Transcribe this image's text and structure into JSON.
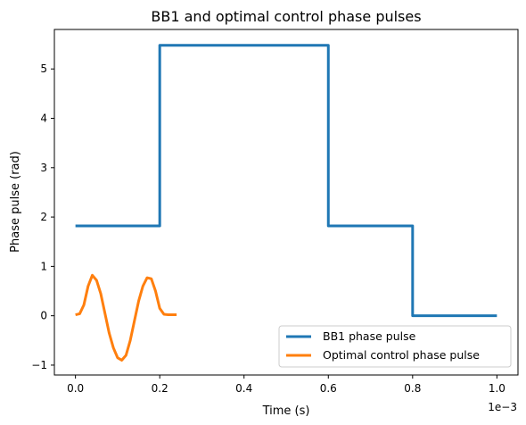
{
  "chart_data": {
    "type": "line",
    "title": "BB1 and optimal control phase pulses",
    "xlabel": "Time (s)",
    "ylabel": "Phase pulse (rad)",
    "x_offset_text": "1e−3",
    "xlim": [
      -0.05,
      1.05
    ],
    "ylim": [
      -1.2,
      5.8
    ],
    "xticks": [
      0.0,
      0.2,
      0.4,
      0.6,
      0.8,
      1.0
    ],
    "xtick_labels": [
      "0.0",
      "0.2",
      "0.4",
      "0.6",
      "0.8",
      "1.0"
    ],
    "yticks": [
      -1,
      0,
      1,
      2,
      3,
      4,
      5
    ],
    "ytick_labels": [
      "−1",
      "0",
      "1",
      "2",
      "3",
      "4",
      "5"
    ],
    "grid": false,
    "legend_position": "lower-right",
    "series": [
      {
        "name": "BB1 phase pulse",
        "color": "#1f77b4",
        "step": true,
        "x": [
          0.0,
          0.2,
          0.2,
          0.6,
          0.6,
          0.8,
          0.8,
          1.0
        ],
        "y": [
          1.82,
          1.82,
          5.48,
          5.48,
          1.82,
          1.82,
          0.0,
          0.0
        ]
      },
      {
        "name": "Optimal control phase pulse",
        "color": "#ff7f0e",
        "step": false,
        "x": [
          0.0,
          0.01,
          0.02,
          0.03,
          0.04,
          0.05,
          0.06,
          0.07,
          0.08,
          0.09,
          0.1,
          0.11,
          0.12,
          0.13,
          0.14,
          0.15,
          0.16,
          0.17,
          0.18,
          0.19,
          0.2,
          0.21,
          0.22,
          0.23,
          0.24
        ],
        "y": [
          0.02,
          0.04,
          0.22,
          0.6,
          0.82,
          0.72,
          0.45,
          0.05,
          -0.35,
          -0.65,
          -0.85,
          -0.9,
          -0.8,
          -0.5,
          -0.1,
          0.3,
          0.6,
          0.77,
          0.75,
          0.5,
          0.15,
          0.03,
          0.02,
          0.02,
          0.02
        ]
      }
    ]
  }
}
